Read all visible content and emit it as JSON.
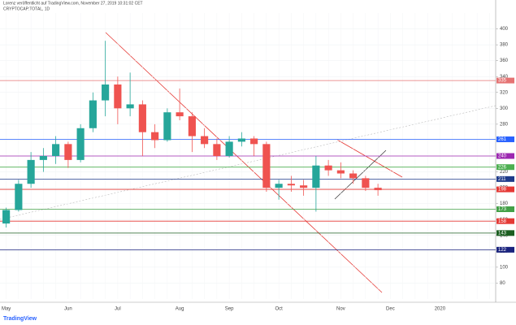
{
  "chart_data": {
    "type": "candlestick",
    "title": "CRYPTOCAP:TOTAL, 1D",
    "subtitle": "Lorenz veröffentlicht auf TradingView.com, November 27, 2019 10:31:02 CET",
    "brand": "TradingView",
    "categories": [
      "May",
      null,
      null,
      null,
      null,
      "Jun",
      null,
      null,
      null,
      "Jul",
      null,
      null,
      null,
      null,
      "Aug",
      null,
      null,
      null,
      "Sep",
      null,
      null,
      null,
      "Oct",
      null,
      null,
      null,
      null,
      "Nov",
      null,
      null,
      null,
      "Dec",
      null,
      null,
      null,
      "2020",
      null,
      null,
      null,
      null
    ],
    "open": [
      155,
      172,
      205,
      235,
      240,
      255,
      235,
      275,
      310,
      330,
      300,
      305,
      270,
      260,
      295,
      290,
      265,
      255,
      240,
      258,
      262,
      255,
      200,
      205,
      203,
      200,
      228,
      222,
      218,
      212,
      200,
      null,
      null,
      null,
      null,
      null,
      null,
      null,
      null,
      null
    ],
    "high": [
      175,
      210,
      245,
      250,
      265,
      258,
      280,
      320,
      385,
      340,
      345,
      310,
      280,
      300,
      325,
      295,
      275,
      262,
      265,
      270,
      265,
      258,
      210,
      215,
      210,
      240,
      235,
      232,
      222,
      215,
      205,
      null,
      null,
      null,
      null,
      null,
      null,
      null,
      null,
      null
    ],
    "low": [
      150,
      170,
      200,
      220,
      230,
      225,
      232,
      270,
      290,
      280,
      290,
      240,
      250,
      258,
      285,
      245,
      250,
      235,
      238,
      252,
      240,
      195,
      185,
      195,
      190,
      170,
      215,
      212,
      205,
      196,
      190,
      null,
      null,
      null,
      null,
      null,
      null,
      null,
      null,
      null
    ],
    "close": [
      172,
      205,
      235,
      240,
      255,
      235,
      275,
      310,
      330,
      300,
      305,
      270,
      260,
      295,
      290,
      265,
      255,
      240,
      258,
      262,
      255,
      200,
      205,
      203,
      200,
      228,
      222,
      218,
      212,
      200,
      197,
      null,
      null,
      null,
      null,
      null,
      null,
      null,
      null,
      null
    ],
    "up_color": "#26a69a",
    "down_color": "#ef5350",
    "levels": [
      {
        "value": 335,
        "color": "#e57373"
      },
      {
        "value": 261,
        "color": "#2962ff"
      },
      {
        "value": 240,
        "color": "#9c27b0"
      },
      {
        "value": 226,
        "color": "#4caf50"
      },
      {
        "value": 211,
        "color": "#1e3a8a"
      },
      {
        "value": 198,
        "color": "#e53935"
      },
      {
        "value": 173,
        "color": "#43a047"
      },
      {
        "value": 158,
        "color": "#e53935"
      },
      {
        "value": 143,
        "color": "#1b5e20"
      },
      {
        "value": 122,
        "color": "#1a237e"
      }
    ],
    "ylim": [
      60,
      420
    ],
    "yticks": [
      80,
      100,
      120,
      140,
      160,
      180,
      200,
      220,
      240,
      260,
      280,
      300,
      320,
      340,
      360,
      380,
      400
    ],
    "grid": true
  }
}
